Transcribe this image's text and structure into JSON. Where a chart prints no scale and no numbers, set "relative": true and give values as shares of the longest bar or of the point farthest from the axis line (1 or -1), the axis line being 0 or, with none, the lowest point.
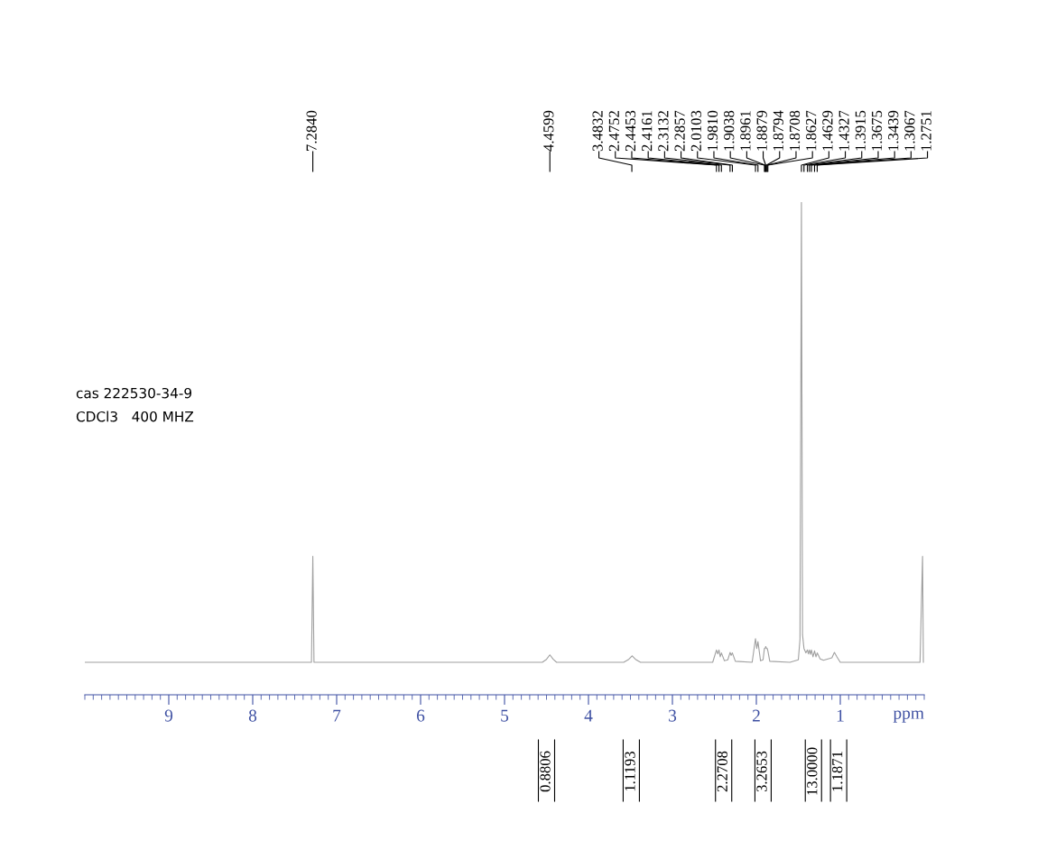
{
  "chart_data": {
    "type": "line",
    "relative": true,
    "xlabel": "ppm",
    "xlim": [
      10,
      0
    ],
    "xticks": [
      1,
      2,
      3,
      4,
      5,
      6,
      7,
      8,
      9
    ],
    "tick_labels": "x",
    "series": [
      {
        "color": "#a0a0a0",
        "x": [
          10.0,
          7.5,
          7.3,
          7.284,
          7.27,
          4.55,
          4.5,
          4.46,
          4.42,
          4.38,
          3.58,
          3.52,
          3.48,
          3.44,
          3.38,
          2.52,
          2.4752,
          2.46,
          2.4453,
          2.43,
          2.4161,
          2.38,
          2.34,
          2.3132,
          2.3,
          2.2857,
          2.25,
          2.05,
          2.0103,
          1.995,
          1.981,
          1.95,
          1.92,
          1.9038,
          1.8961,
          1.8879,
          1.8794,
          1.8708,
          1.8627,
          1.84,
          1.6,
          1.5,
          1.48,
          1.4629,
          1.45,
          1.4327,
          1.41,
          1.3915,
          1.38,
          1.3675,
          1.355,
          1.3439,
          1.325,
          1.3067,
          1.29,
          1.2751,
          1.24,
          1.2,
          1.1,
          1.07,
          1.04,
          1.0,
          0.05,
          0.02,
          0.01
        ],
        "values": [
          0.066,
          0.066,
          0.066,
          0.281,
          0.066,
          0.066,
          0.072,
          0.081,
          0.072,
          0.066,
          0.066,
          0.072,
          0.079,
          0.072,
          0.066,
          0.066,
          0.091,
          0.083,
          0.091,
          0.077,
          0.085,
          0.069,
          0.071,
          0.086,
          0.08,
          0.085,
          0.068,
          0.066,
          0.114,
          0.094,
          0.108,
          0.069,
          0.071,
          0.094,
          0.094,
          0.098,
          0.094,
          0.094,
          0.089,
          0.068,
          0.066,
          0.071,
          0.113,
          1.0,
          0.122,
          0.094,
          0.085,
          0.091,
          0.083,
          0.091,
          0.082,
          0.091,
          0.077,
          0.089,
          0.077,
          0.085,
          0.073,
          0.07,
          0.075,
          0.086,
          0.077,
          0.066,
          0.066,
          0.281,
          0.066
        ]
      }
    ],
    "annotations": [
      "cas 222530-34-9",
      "CDCl3   400 MHZ",
      "7.2840",
      "4.4599",
      "3.4832",
      "2.4752",
      "2.4453",
      "2.4161",
      "2.3132",
      "2.2857",
      "2.0103",
      "1.9810",
      "1.9038",
      "1.8961",
      "1.8879",
      "1.8794",
      "1.8708",
      "1.8627",
      "1.4629",
      "1.4327",
      "1.3915",
      "1.3675",
      "1.3439",
      "1.3067",
      "1.2751",
      "0.8806",
      "1.1193",
      "2.2708",
      "3.2653",
      "13.0000",
      "1.1871"
    ]
  }
}
